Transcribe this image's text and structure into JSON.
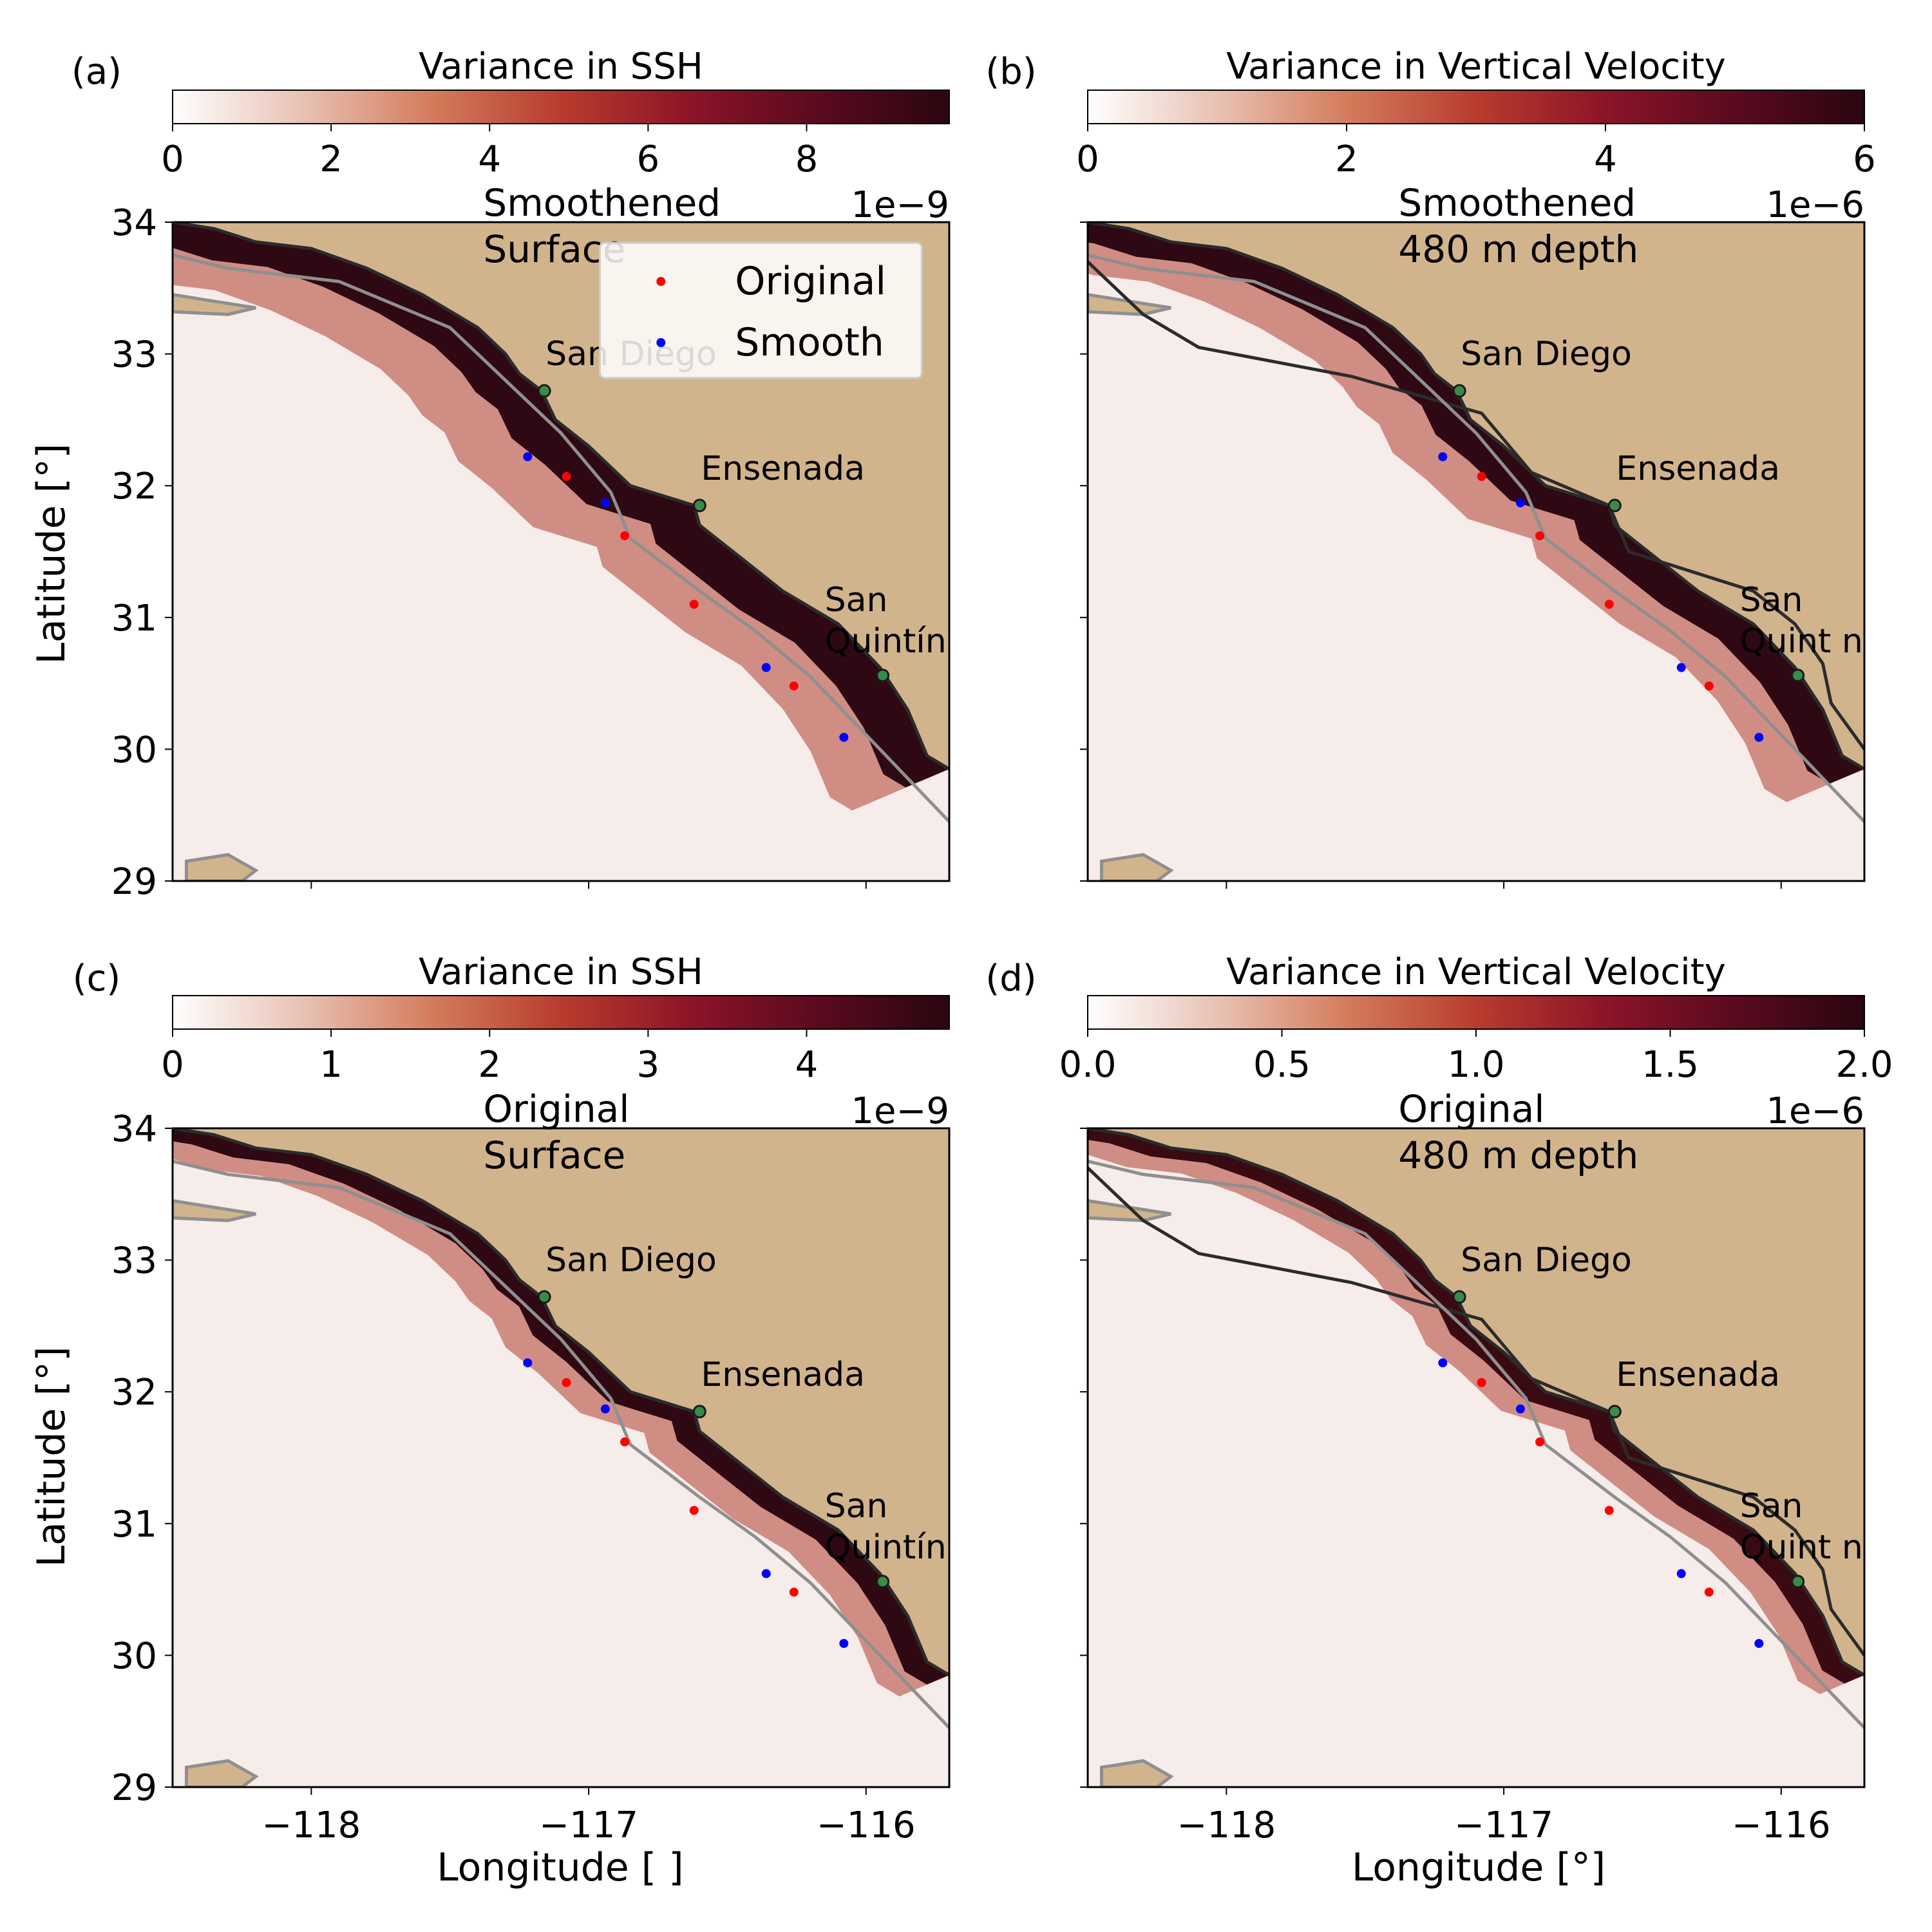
{
  "colors": {
    "land": "#d2b48c",
    "coast_line": "#2b2b2b",
    "contour": "#8f8f8f",
    "city_marker": "#3a8a4a",
    "original_marker": "#ff0000",
    "smooth_marker": "#0000ff",
    "cmap": [
      "#ffffff",
      "#e8c2b4",
      "#d47c5c",
      "#b83c2e",
      "#8c1428",
      "#5a0a1e",
      "#2a0610"
    ]
  },
  "axes_common": {
    "xlabel": "Longitude [°]",
    "xlabel_panel_c": "Longitude [   ]",
    "ylabel": "Latitude [°]",
    "xticks": [
      "−118",
      "−117",
      "−116"
    ],
    "xtick_values": [
      -118,
      -117,
      -116
    ],
    "yticks": [
      "29",
      "30",
      "31",
      "32",
      "33",
      "34"
    ],
    "ytick_values": [
      29,
      30,
      31,
      32,
      33,
      34
    ],
    "xlim": [
      -118.5,
      -115.7
    ],
    "ylim": [
      29,
      34
    ]
  },
  "cities": [
    {
      "name": "San Diego",
      "lon": -117.16,
      "lat": 32.72
    },
    {
      "name": "Ensenada",
      "lon": -116.6,
      "lat": 31.85
    },
    {
      "name": "San Quintín",
      "name_line1": "San",
      "name_line2": "Quintín",
      "name_line2_alt": "Quint  n",
      "lon": -115.94,
      "lat": 30.56
    }
  ],
  "legend": {
    "original": "Original",
    "smooth": "Smooth"
  },
  "panels": [
    {
      "label": "(a)",
      "cbar_title": "Variance in SSH",
      "cbar_ticks": [
        "0",
        "2",
        "4",
        "6",
        "8"
      ],
      "cbar_tick_values": [
        0,
        2,
        4,
        6,
        8
      ],
      "cbar_max": 9.8,
      "cbar_exp": "1e−9",
      "title_line1": "Smoothened",
      "title_line2": "Surface",
      "show_legend": true
    },
    {
      "label": "(b)",
      "cbar_title": "Variance in Vertical Velocity",
      "cbar_ticks": [
        "0",
        "2",
        "4",
        "6"
      ],
      "cbar_tick_values": [
        0,
        2,
        4,
        6
      ],
      "cbar_max": 6.0,
      "cbar_exp": "1e−6",
      "title_line1": "Smoothened",
      "title_line2": "480 m depth",
      "show_legend": false
    },
    {
      "label": "(c)",
      "cbar_title": "Variance in SSH",
      "cbar_ticks": [
        "0",
        "1",
        "2",
        "3",
        "4"
      ],
      "cbar_tick_values": [
        0,
        1,
        2,
        3,
        4
      ],
      "cbar_max": 4.9,
      "cbar_exp": "1e−9",
      "title_line1": "Original",
      "title_line2": "Surface",
      "show_legend": false
    },
    {
      "label": "(d)",
      "cbar_title": "Variance in Vertical Velocity",
      "cbar_ticks": [
        "0.0",
        "0.5",
        "1.0",
        "1.5",
        "2.0"
      ],
      "cbar_tick_values": [
        0,
        0.5,
        1.0,
        1.5,
        2.0
      ],
      "cbar_max": 2.0,
      "cbar_exp": "1e−6",
      "title_line1": "Original",
      "title_line2": "480 m depth",
      "show_legend": false
    }
  ],
  "chart_data": {
    "type": "heatmap",
    "coastline": [
      [
        -118.5,
        34.0
      ],
      [
        -118.35,
        33.95
      ],
      [
        -118.2,
        33.85
      ],
      [
        -118.0,
        33.8
      ],
      [
        -117.8,
        33.65
      ],
      [
        -117.6,
        33.45
      ],
      [
        -117.4,
        33.2
      ],
      [
        -117.3,
        33.0
      ],
      [
        -117.25,
        32.85
      ],
      [
        -117.17,
        32.72
      ],
      [
        -117.12,
        32.5
      ],
      [
        -117.0,
        32.3
      ],
      [
        -116.85,
        32.0
      ],
      [
        -116.62,
        31.85
      ],
      [
        -116.6,
        31.7
      ],
      [
        -116.45,
        31.45
      ],
      [
        -116.3,
        31.2
      ],
      [
        -116.1,
        30.95
      ],
      [
        -115.95,
        30.62
      ],
      [
        -115.85,
        30.3
      ],
      [
        -115.78,
        29.95
      ],
      [
        -115.7,
        29.85
      ]
    ],
    "border_line": [
      [
        -118.5,
        33.7
      ],
      [
        -118.3,
        33.3
      ],
      [
        -118.1,
        33.05
      ],
      [
        -117.55,
        32.83
      ],
      [
        -117.08,
        32.55
      ],
      [
        -116.9,
        32.1
      ],
      [
        -116.62,
        31.85
      ],
      [
        -116.55,
        31.5
      ],
      [
        -116.1,
        31.2
      ],
      [
        -115.95,
        30.95
      ],
      [
        -115.85,
        30.65
      ],
      [
        -115.82,
        30.35
      ],
      [
        -115.7,
        30.0
      ]
    ],
    "shelf_contour": [
      [
        -118.5,
        33.75
      ],
      [
        -118.3,
        33.65
      ],
      [
        -117.9,
        33.55
      ],
      [
        -117.5,
        33.2
      ],
      [
        -117.3,
        32.8
      ],
      [
        -117.1,
        32.4
      ],
      [
        -116.92,
        31.95
      ],
      [
        -116.85,
        31.6
      ],
      [
        -116.6,
        31.2
      ],
      [
        -116.4,
        30.9
      ],
      [
        -116.2,
        30.55
      ],
      [
        -115.95,
        30.0
      ],
      [
        -115.7,
        29.45
      ]
    ],
    "sample_points_original": [
      [
        -117.08,
        32.07
      ],
      [
        -116.87,
        31.62
      ],
      [
        -116.62,
        31.1
      ],
      [
        -116.26,
        30.48
      ]
    ],
    "sample_points_smooth": [
      [
        -117.22,
        32.22
      ],
      [
        -116.94,
        31.87
      ],
      [
        -116.36,
        30.62
      ],
      [
        -116.08,
        30.09
      ]
    ],
    "islands": [
      [
        [
          -118.5,
          33.45
        ],
        [
          -118.35,
          33.4
        ],
        [
          -118.2,
          33.35
        ],
        [
          -118.3,
          33.3
        ],
        [
          -118.5,
          33.32
        ]
      ],
      [
        [
          -118.45,
          29.15
        ],
        [
          -118.3,
          29.2
        ],
        [
          -118.2,
          29.08
        ],
        [
          -118.25,
          29.0
        ],
        [
          -118.45,
          29.0
        ]
      ]
    ]
  }
}
